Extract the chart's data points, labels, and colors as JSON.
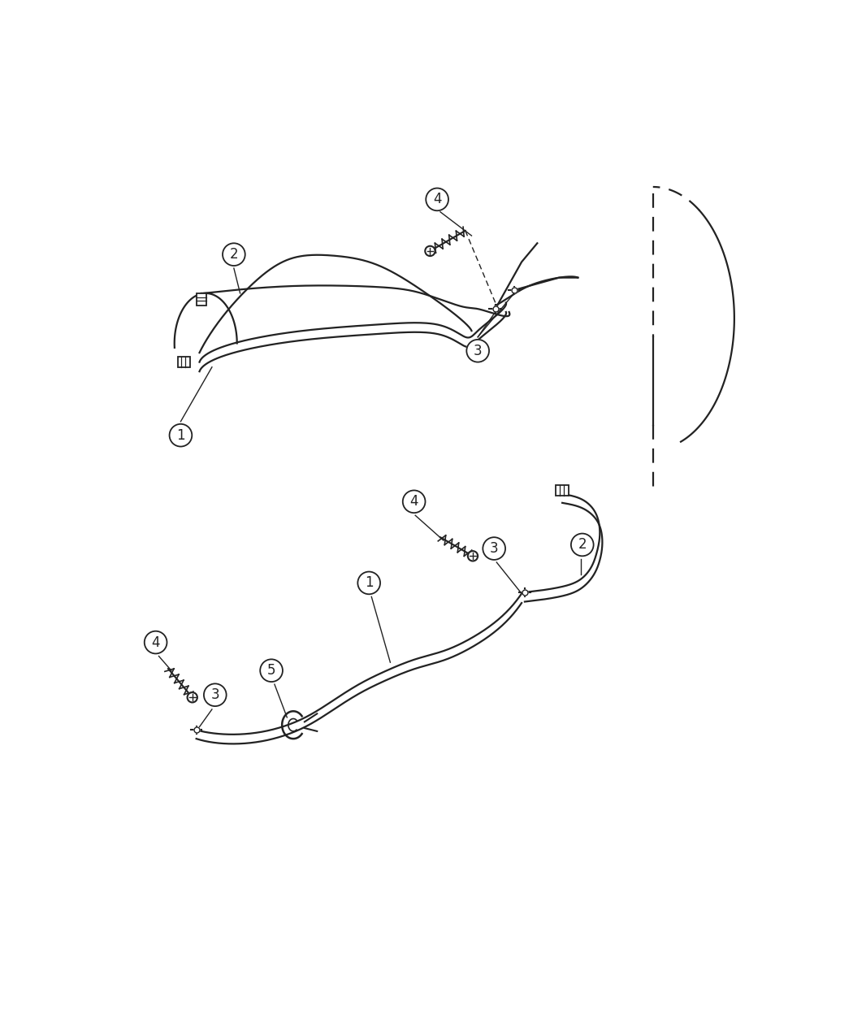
{
  "bg_color": "#ffffff",
  "line_color": "#222222",
  "lw": 1.6,
  "fig_width": 10.5,
  "fig_height": 12.75,
  "dpi": 100
}
